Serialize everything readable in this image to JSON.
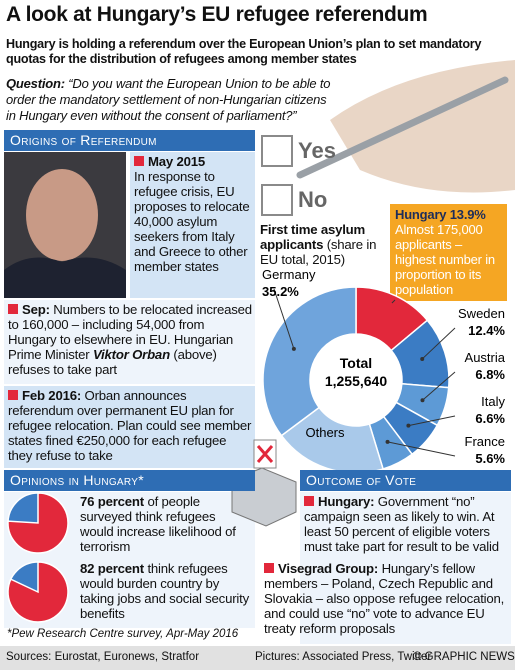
{
  "header": {
    "title": "A look at Hungary’s EU refugee referendum",
    "subtitle": "Hungary is holding a referendum over the European Union’s plan to set mandatory quotas for the distribution of refugees among member states"
  },
  "question": {
    "label": "Question:",
    "text": "“Do you want the European Union to be able to order the mandatory settlement of non-Hungarian citizens in Hungary even without the consent of parliament?”"
  },
  "ballot": {
    "options": [
      "Yes",
      "No"
    ]
  },
  "origins": {
    "heading": "Origins of Referendum",
    "events": [
      {
        "date": "May 2015",
        "text": "In response to refugee crisis, EU proposes to relocate 40,000 asylum seekers from Italy and Greece to other member states"
      },
      {
        "date": "Sep:",
        "text": "Numbers to be relocated increased to 160,000 – including 54,000 from Hungary to elsewhere in EU. Hungarian Prime Minister",
        "name": "Viktor Orban",
        "after": "(above) refuses to take part"
      },
      {
        "date": "Feb 2016:",
        "text": "Orban announces referendum over permanent EU plan for refugee relocation. Plan could see member states fined €250,000 for each refugee they refuse to take"
      }
    ]
  },
  "opinions": {
    "heading": "Opinions in Hungary*",
    "footnote": "*Pew Research Centre survey, Apr-May 2016"
  },
  "outcome": {
    "heading": "Outcome of Vote",
    "items": [
      {
        "label": "Hungary:",
        "text": "Government “no” campaign seen as likely to win. At least 50 percent of eligible voters must take part for result to be valid"
      },
      {
        "label": "Visegrad Group:",
        "text": "Hungary’s fellow members – Poland, Czech Republic and Slovakia – also oppose refugee relocation, and could use “no” vote to advance EU treaty reform proposals"
      }
    ]
  },
  "footer": {
    "sources": "Sources: Eurostat, Euronews, Stratfor",
    "pictures": "Pictures: Associated Press, Twitter",
    "credit": "© GRAPHIC NEWS"
  },
  "chart_data": [
    {
      "type": "donut",
      "title": "First time asylum applicants",
      "subtitle": "(share in EU total, 2015)",
      "center_label": "Total",
      "total": "1,255,640",
      "categories": [
        "Hungary",
        "Sweden",
        "Austria",
        "Italy",
        "France",
        "Others",
        "Germany"
      ],
      "values": [
        13.9,
        12.4,
        6.8,
        6.6,
        5.6,
        19.5,
        35.2
      ],
      "value_labels": [
        "13.9%",
        "12.4%",
        "6.8%",
        "6.6%",
        "5.6%",
        null,
        "35.2%"
      ],
      "colors": [
        "#e2283b",
        "#3b7cc4",
        "#5d9ad6",
        "#3b7cc4",
        "#5d9ad6",
        "#a9c9ea",
        "#6fa4dc"
      ],
      "annotation": "Almost 175,000 applicants – highest number in proportion to its population"
    },
    {
      "type": "pie",
      "values": [
        76
      ],
      "value_labels": [
        "76 percent"
      ],
      "text": "of people surveyed think refugees would increase likelihood of terrorism",
      "colors": [
        "#e2283b",
        "#3b7cc4"
      ]
    },
    {
      "type": "pie",
      "values": [
        82
      ],
      "value_labels": [
        "82 percent"
      ],
      "text": "think refugees would burden country by taking jobs and social security benefits",
      "colors": [
        "#e2283b",
        "#3b7cc4"
      ]
    }
  ]
}
